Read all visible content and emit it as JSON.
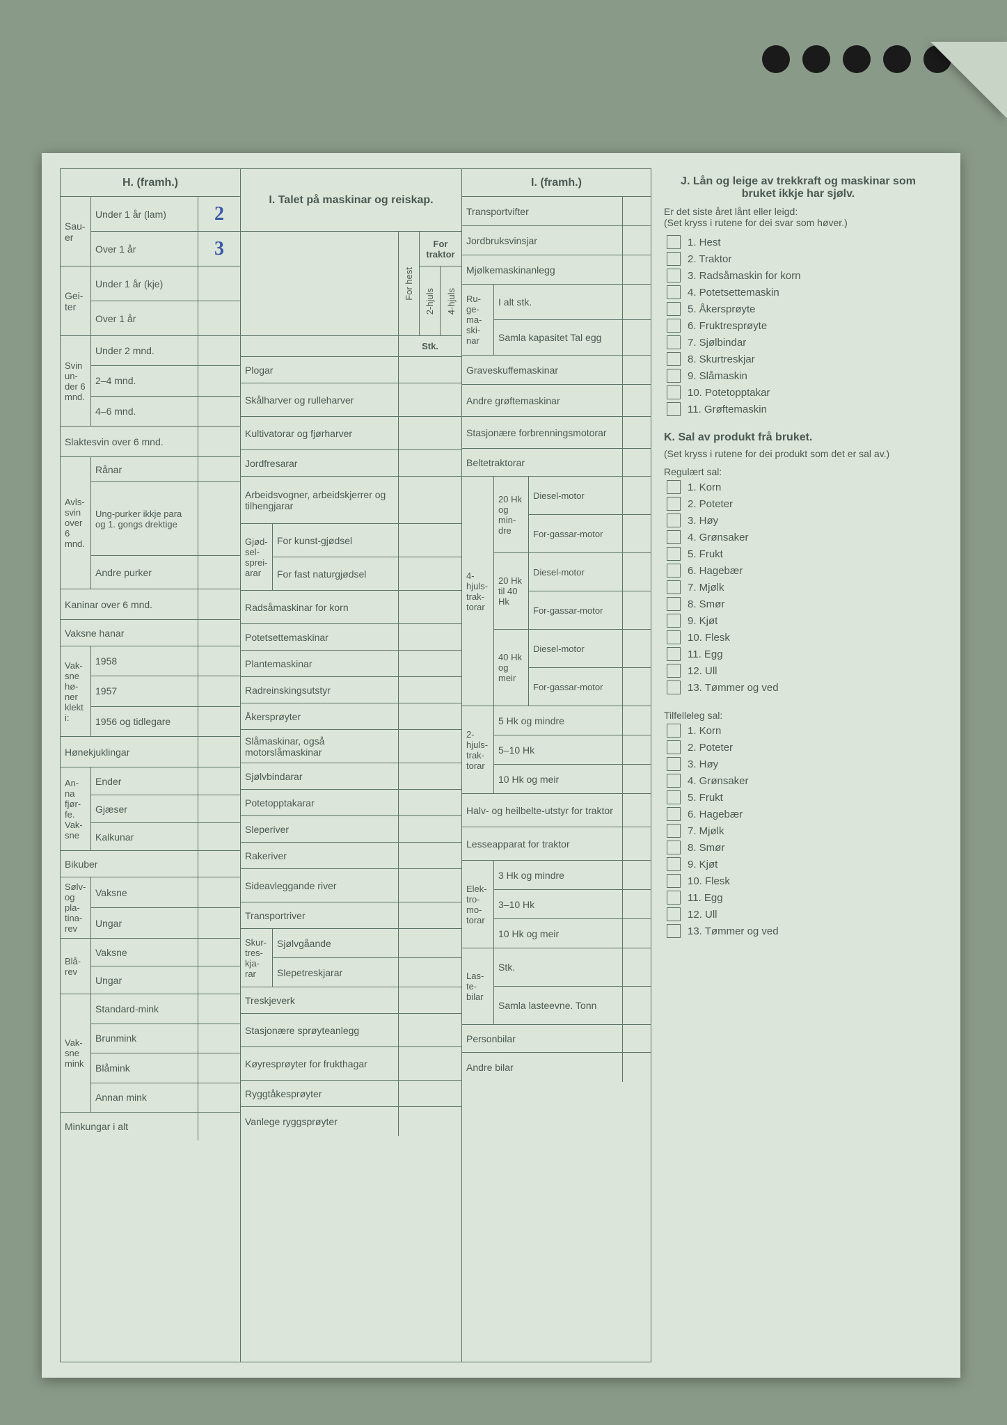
{
  "colors": {
    "page_bg": "#dce5d9",
    "scan_bg": "#8a9a88",
    "rule": "#5a7268",
    "text": "#4a5a53",
    "handwriting": "#3b5aa8"
  },
  "handwritten": {
    "sauer_under1": "2",
    "sauer_over1": "3"
  },
  "H": {
    "title": "H. (framh.)",
    "rows": {
      "sauer": {
        "label": "Sau-er",
        "sub": [
          "Under 1 år (lam)",
          "Over 1 år"
        ]
      },
      "geiter": {
        "label": "Gei-ter",
        "sub": [
          "Under 1 år (kje)",
          "Over 1 år"
        ]
      },
      "svin_u6": {
        "label": "Svin un-der 6 mnd.",
        "sub": [
          "Under 2 mnd.",
          "2–4 mnd.",
          "4–6 mnd."
        ]
      },
      "slaktesvin": "Slaktesvin over 6 mnd.",
      "avlssvin": {
        "label": "Avls-svin over 6 mnd.",
        "sub": [
          "Rånar",
          "Ung-purker ikkje para og 1. gongs drektige",
          "Andre purker"
        ]
      },
      "kaninar": "Kaninar over 6 mnd.",
      "vaksne_hanar": "Vaksne hanar",
      "honer": {
        "label": "Vak-sne hø-ner klekt i:",
        "sub": [
          "1958",
          "1957",
          "1956 og tidlegare"
        ]
      },
      "honekjuklingar": "Hønekjuklingar",
      "fjorfe": {
        "label": "An-na fjør-fe. Vak-sne",
        "sub": [
          "Ender",
          "Gjæser",
          "Kalkunar"
        ]
      },
      "bikuber": "Bikuber",
      "solvrev": {
        "label": "Sølv- og pla-tina-rev",
        "sub": [
          "Vaksne",
          "Ungar"
        ]
      },
      "blarev": {
        "label": "Blå-rev",
        "sub": [
          "Vaksne",
          "Ungar"
        ]
      },
      "mink": {
        "label": "Vak-sne mink",
        "sub": [
          "Standard-mink",
          "Brunmink",
          "Blåmink",
          "Annan mink"
        ]
      },
      "minkungar": "Minkungar i alt"
    }
  },
  "I": {
    "title": "I. Talet på maskinar og reiskap.",
    "col_headers": {
      "forhest": "For hest",
      "for_traktor": "For traktor",
      "t2": "2-hjuls",
      "t4": "4-hjuls",
      "stk": "Stk."
    },
    "rows": [
      "Plogar",
      "Skålharver og rulleharver",
      "Kultivatorar og fjørharver",
      "Jordfresarar",
      "Arbeidsvogner, arbeidskjerrer og tilhengjarar",
      "Radsåmaskinar for korn",
      "Potetsettemaskinar",
      "Plantemaskinar",
      "Radreinskingsutstyr",
      "Åkersprøyter",
      "Slåmaskinar, også motorslåmaskinar",
      "Sjølvbindarar",
      "Potetopptakarar",
      "Sleperiver",
      "Rakeriver",
      "Sideavleggande river",
      "Transportriver",
      "Treskjeverk",
      "Stasjonære sprøyteanlegg",
      "Køyresprøyter for frukthagar",
      "Ryggtåkesprøyter",
      "Vanlege ryggsprøyter"
    ],
    "gjodsel": {
      "label": "Gjød-sel-sprei-arar",
      "sub": [
        "For kunst-gjødsel",
        "For fast naturgjødsel"
      ]
    },
    "skurtresk": {
      "label": "Skur-tres-kja-rar",
      "sub": [
        "Sjølvgåande",
        "Slepetreskjarar"
      ]
    }
  },
  "Ic": {
    "title": "I. (framh.)",
    "simple": [
      "Transportvifter",
      "Jordbruksvinsjar",
      "Mjølkemaskinanlegg",
      "Graveskuffemaskinar",
      "Andre grøftemaskinar",
      "Stasjonære forbrenningsmotorar",
      "Beltetraktorar",
      "Halv- og heilbelte-utstyr for traktor",
      "Lesseapparat for traktor",
      "Personbilar",
      "Andre bilar"
    ],
    "ruge": {
      "label": "Ru-ge-ma-ski-nar",
      "sub": [
        "I alt stk.",
        "Samla kapasitet Tal egg"
      ]
    },
    "trak4": {
      "label": "4-hjuls-trak-torar",
      "groups": [
        {
          "hk": "20 Hk og min-dre",
          "motors": [
            "Diesel-motor",
            "For-gassar-motor"
          ]
        },
        {
          "hk": "20 Hk til 40 Hk",
          "motors": [
            "Diesel-motor",
            "For-gassar-motor"
          ]
        },
        {
          "hk": "40 Hk og meir",
          "motors": [
            "Diesel-motor",
            "For-gassar-motor"
          ]
        }
      ]
    },
    "trak2": {
      "label": "2-hjuls-trak-torar",
      "sub": [
        "5 Hk og mindre",
        "5–10 Hk",
        "10 Hk og meir"
      ]
    },
    "elektro": {
      "label": "Elek-tro-mo-torar",
      "sub": [
        "3 Hk og mindre",
        "3–10 Hk",
        "10 Hk og meir"
      ]
    },
    "laste": {
      "label": "Las-te-bilar",
      "sub": [
        "Stk.",
        "Samla lasteevne. Tonn"
      ]
    }
  },
  "J": {
    "title": "J. Lån og leige av trekkraft og maskinar som bruket ikkje har sjølv.",
    "subtitle": "Er det siste året lånt eller leigd:",
    "note": "(Set kryss i rutene for dei svar som høver.)",
    "items": [
      "Hest",
      "Traktor",
      "Radsåmaskin for korn",
      "Potetsettemaskin",
      "Åkersprøyte",
      "Fruktresprøyte",
      "Sjølbindar",
      "Skurtreskjar",
      "Slåmaskin",
      "Potetopptakar",
      "Grøftemaskin"
    ]
  },
  "K": {
    "title": "K. Sal av produkt frå bruket.",
    "note": "(Set kryss i rutene for dei produkt som det er sal av.)",
    "reg_title": "Regulært sal:",
    "til_title": "Tilfelleleg sal:",
    "items": [
      "Korn",
      "Poteter",
      "Høy",
      "Grønsaker",
      "Frukt",
      "Hagebær",
      "Mjølk",
      "Smør",
      "Kjøt",
      "Flesk",
      "Egg",
      "Ull",
      "Tømmer og ved"
    ]
  }
}
